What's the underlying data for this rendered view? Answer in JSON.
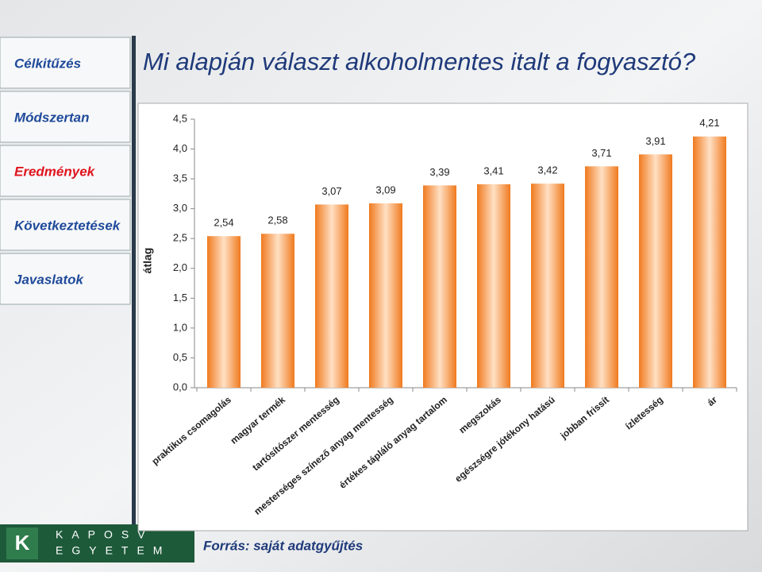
{
  "nav": {
    "items": [
      "Célkitűzés",
      "Módszertan",
      "Eredmények",
      "Következtetések",
      "Javaslatok"
    ],
    "active": 2
  },
  "title": "Mi alapján választ alkoholmentes italt a fogyasztó?",
  "chart_data": {
    "type": "bar",
    "ylabel": "átlag",
    "categories": [
      "praktikus csomagolás",
      "magyar termék",
      "tartósítószer mentesség",
      "mesterséges színező anyag mentesség",
      "értékes tápláló anyag tartalom",
      "megszokás",
      "egészségre jótékony hatású",
      "jobban frissít",
      "ízletesség",
      "ár"
    ],
    "values": [
      2.54,
      2.58,
      3.07,
      3.09,
      3.39,
      3.41,
      3.42,
      3.71,
      3.91,
      4.21
    ],
    "value_labels": [
      "2,54",
      "2,58",
      "3,07",
      "3,09",
      "3,39",
      "3,41",
      "3,42",
      "3,71",
      "3,91",
      "4,21"
    ],
    "color": "#f07a1e",
    "ylim": [
      0,
      4.5
    ],
    "yticks": [
      {
        "value": 0,
        "label": "0,0"
      },
      {
        "value": 0.5,
        "label": "0,5"
      },
      {
        "value": 1,
        "label": "1,0"
      },
      {
        "value": 1.5,
        "label": "1,5"
      },
      {
        "value": 2,
        "label": "2,0"
      },
      {
        "value": 2.5,
        "label": "2,5"
      },
      {
        "value": 3,
        "label": "3,0"
      },
      {
        "value": 3.5,
        "label": "3,5"
      },
      {
        "value": 4,
        "label": "4,0"
      },
      {
        "value": 4.5,
        "label": "4,5"
      }
    ]
  },
  "footer": {
    "logo_letter": "K",
    "logo_line1": "KAPOSV",
    "logo_line2": "EGYETEM",
    "source": "Forrás: saját adatgyűjtés"
  }
}
